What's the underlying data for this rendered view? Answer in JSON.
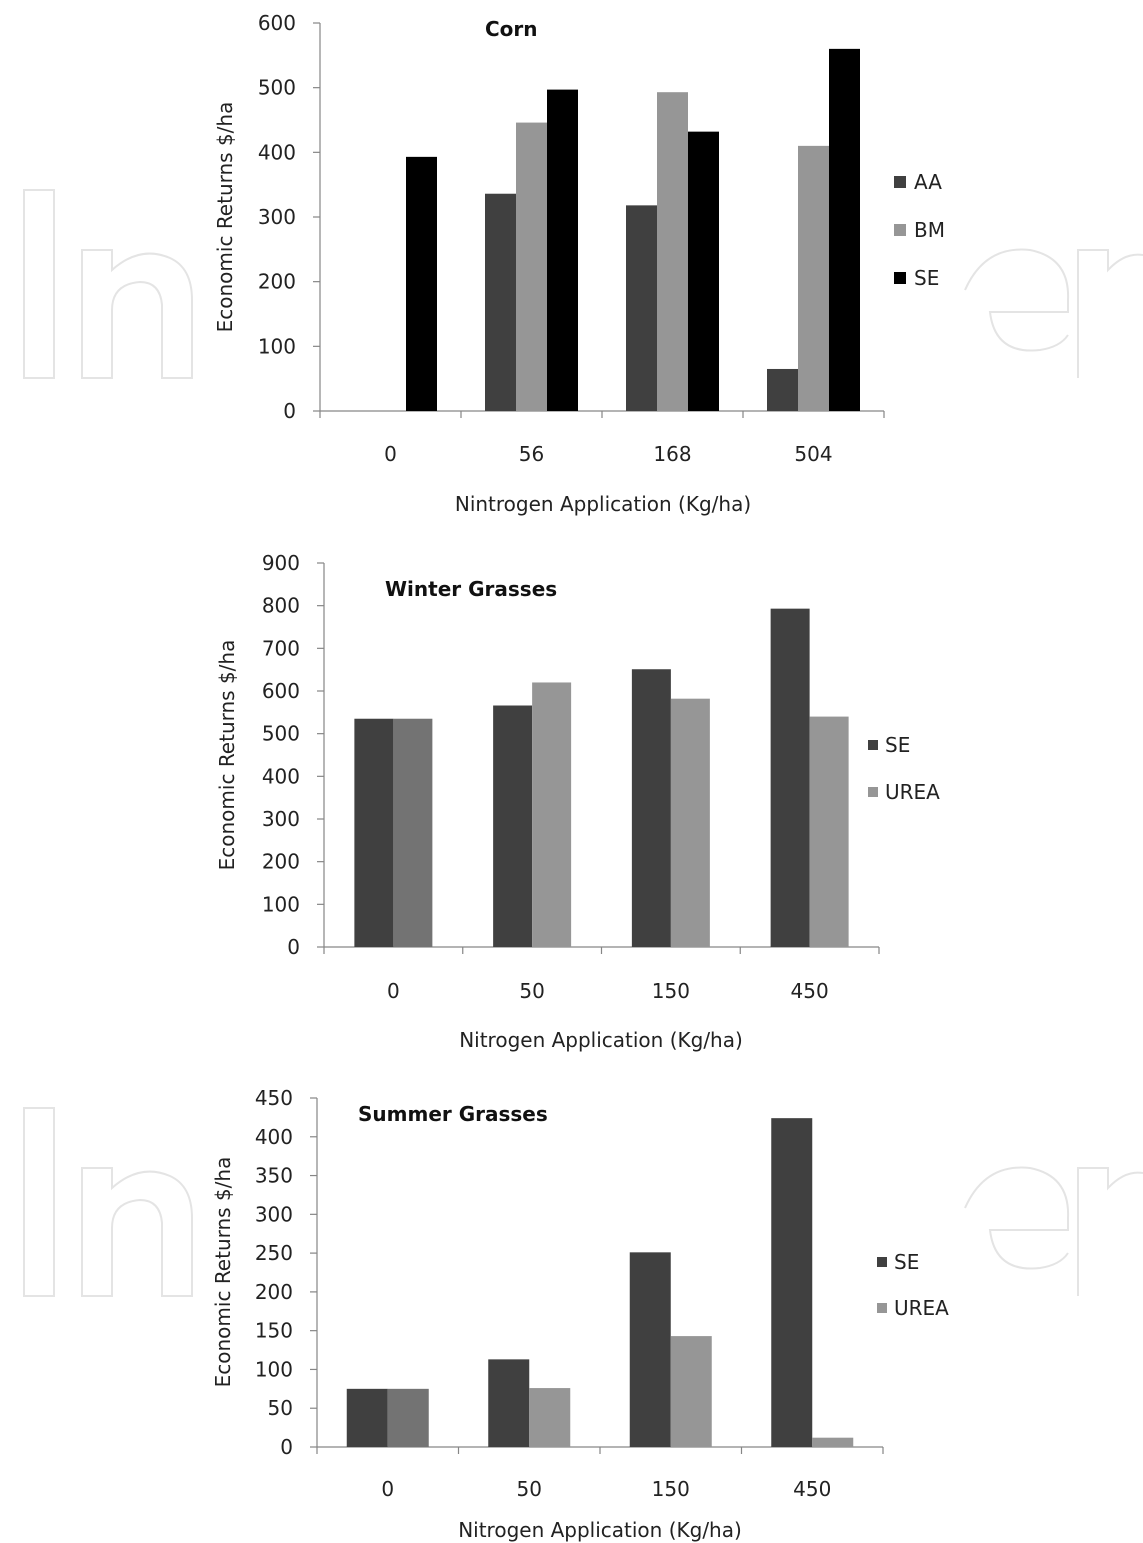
{
  "watermark": "IntechOpen",
  "chart_data": [
    {
      "type": "bar",
      "title": "Corn",
      "xlabel": "Nintrogen Application (Kg/ha)",
      "ylabel": "Economic Returns $/ha",
      "ylim": [
        0,
        600
      ],
      "yticks": [
        0,
        100,
        200,
        300,
        400,
        500,
        600
      ],
      "categories": [
        "0",
        "56",
        "168",
        "504"
      ],
      "series": [
        {
          "name": "AA",
          "color": "#404040",
          "values": [
            null,
            336,
            318,
            65
          ]
        },
        {
          "name": "BM",
          "color": "#969696",
          "values": [
            null,
            446,
            493,
            410
          ]
        },
        {
          "name": "SE",
          "color": "#000000",
          "values": [
            393,
            497,
            432,
            560
          ]
        }
      ],
      "legend": "right",
      "grid": false
    },
    {
      "type": "bar",
      "title": "Winter Grasses",
      "xlabel": "Nitrogen Application (Kg/ha)",
      "ylabel": "Economic Returns $/ha",
      "ylim": [
        0,
        900
      ],
      "yticks": [
        0,
        100,
        200,
        300,
        400,
        500,
        600,
        700,
        800,
        900
      ],
      "categories": [
        "0",
        "50",
        "150",
        "450"
      ],
      "series": [
        {
          "name": "SE",
          "color": "#404040",
          "values": [
            535,
            566,
            651,
            793
          ]
        },
        {
          "name": "UREA",
          "color": "#969696",
          "values": [
            535,
            620,
            582,
            540
          ]
        }
      ],
      "point_colors": {
        "1": {
          "0": "#737373"
        }
      },
      "legend": "right",
      "grid": false
    },
    {
      "type": "bar",
      "title": "Summer Grasses",
      "xlabel": "Nitrogen Application (Kg/ha)",
      "ylabel": "Economic Returns $/ha",
      "ylim": [
        0,
        450
      ],
      "yticks": [
        0,
        50,
        100,
        150,
        200,
        250,
        300,
        350,
        400,
        450
      ],
      "categories": [
        "0",
        "50",
        "150",
        "450"
      ],
      "series": [
        {
          "name": "SE",
          "color": "#404040",
          "values": [
            75,
            113,
            251,
            424
          ]
        },
        {
          "name": "UREA",
          "color": "#969696",
          "values": [
            75,
            76,
            143,
            12
          ]
        }
      ],
      "point_colors": {
        "1": {
          "0": "#737373"
        }
      },
      "legend": "right",
      "grid": false
    }
  ]
}
